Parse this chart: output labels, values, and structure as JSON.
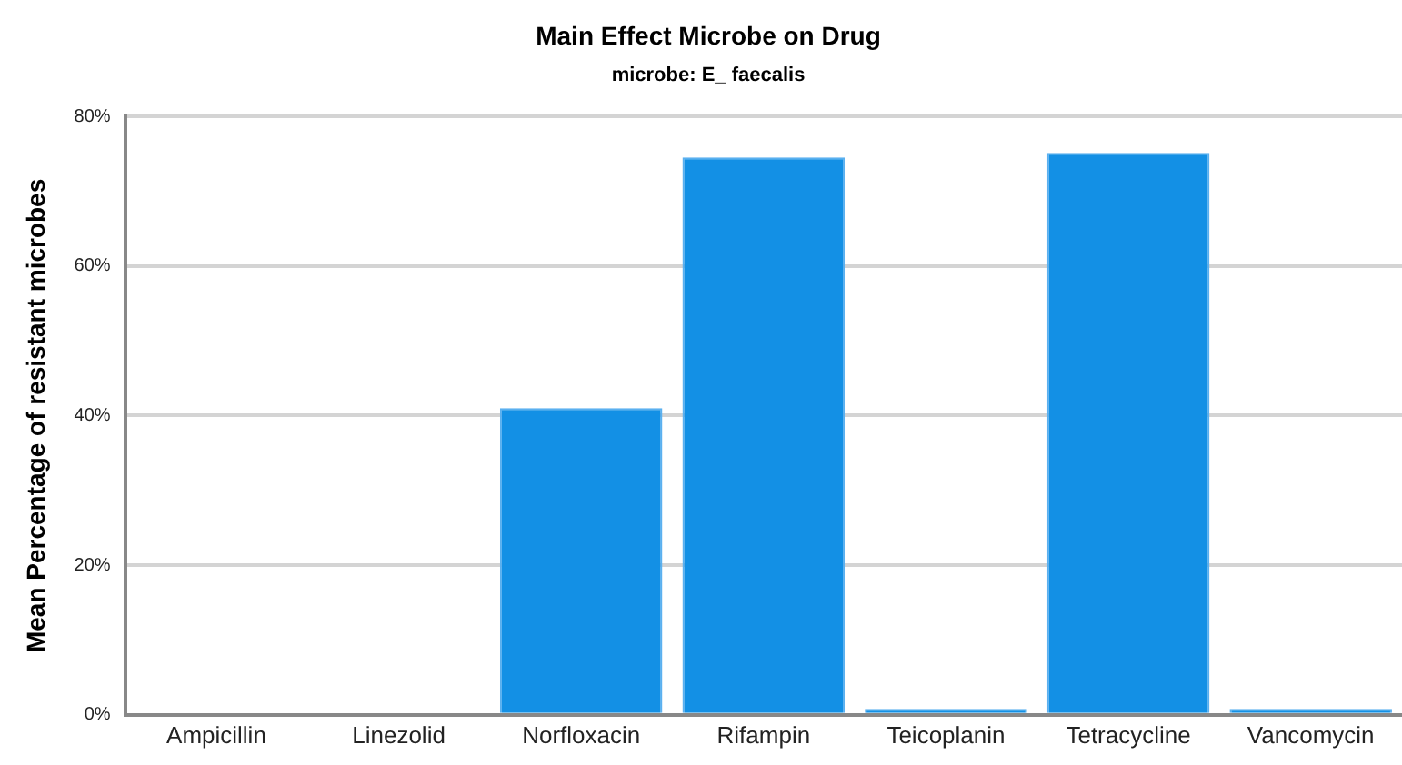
{
  "chart_data": {
    "type": "bar",
    "title": "Main Effect Microbe on Drug",
    "subtitle": "microbe: E_ faecalis",
    "ylabel": "Mean Percentage of resistant microbes",
    "categories": [
      "Ampicillin",
      "Linezolid",
      "Norfloxacin",
      "Rifampin",
      "Teicoplanin",
      "Tetracycline",
      "Vancomycin"
    ],
    "values": [
      0,
      0,
      41,
      74.5,
      0.8,
      75.1,
      0.8
    ],
    "color": "#1390e5",
    "ylim": [
      0,
      80
    ],
    "yticks": [
      {
        "value": 0,
        "label": "0%"
      },
      {
        "value": 20,
        "label": "20%"
      },
      {
        "value": 40,
        "label": "40%"
      },
      {
        "value": 60,
        "label": "60%"
      },
      {
        "value": 80,
        "label": "80%"
      }
    ],
    "grid": "y",
    "legend": false
  }
}
